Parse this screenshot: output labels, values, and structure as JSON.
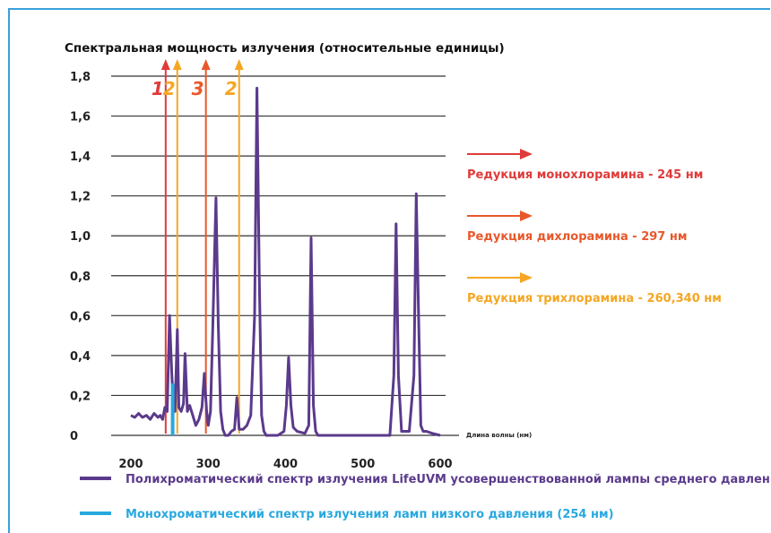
{
  "chart_data": {
    "type": "line",
    "title": "Спектральная мощность излучения (относительные единицы)",
    "xlabel": "Длина волны (нм)",
    "ylabel": "",
    "xlim": [
      160,
      600
    ],
    "ylim": [
      0,
      1.8
    ],
    "x_ticks": [
      "200",
      "300",
      "400",
      "500",
      "600"
    ],
    "y_ticks": [
      "0",
      "0,2",
      "0,4",
      "0,6",
      "0,8",
      "1,0",
      "1,2",
      "1,4",
      "1,6",
      "1,8"
    ],
    "grid": "horizontal",
    "series": [
      {
        "name": "Полихроматический спектр излучения LifeUVM усовершенствованной лампы среднего давления",
        "color": "#5b3a8c",
        "x": [
          200,
          205,
          210,
          215,
          220,
          225,
          230,
          235,
          238,
          241,
          244,
          247,
          250,
          253,
          255,
          257,
          260,
          262,
          265,
          268,
          270,
          273,
          276,
          280,
          284,
          288,
          292,
          295,
          298,
          300,
          303,
          306,
          310,
          313,
          316,
          319,
          322,
          326,
          330,
          334,
          337,
          340,
          345,
          350,
          355,
          360,
          363,
          366,
          369,
          372,
          375,
          380,
          390,
          398,
          401,
          404,
          407,
          410,
          415,
          425,
          430,
          433,
          436,
          439,
          442,
          460,
          500,
          535,
          540,
          543,
          546,
          550,
          560,
          566,
          569,
          572,
          575,
          578,
          582,
          590,
          600
        ],
        "values": [
          0.1,
          0.09,
          0.11,
          0.09,
          0.1,
          0.08,
          0.11,
          0.09,
          0.1,
          0.08,
          0.14,
          0.12,
          0.6,
          0.3,
          0.15,
          0.12,
          0.53,
          0.14,
          0.12,
          0.16,
          0.41,
          0.12,
          0.15,
          0.1,
          0.05,
          0.08,
          0.14,
          0.31,
          0.12,
          0.05,
          0.12,
          0.55,
          1.19,
          0.55,
          0.12,
          0.03,
          0.0,
          0.0,
          0.02,
          0.03,
          0.19,
          0.03,
          0.03,
          0.05,
          0.1,
          0.6,
          1.74,
          0.8,
          0.1,
          0.02,
          0.0,
          0.0,
          0.0,
          0.02,
          0.15,
          0.39,
          0.15,
          0.04,
          0.02,
          0.01,
          0.05,
          0.99,
          0.15,
          0.02,
          0.0,
          0.0,
          0.0,
          0.0,
          0.3,
          1.06,
          0.3,
          0.02,
          0.02,
          0.3,
          1.21,
          0.6,
          0.05,
          0.02,
          0.02,
          0.01,
          0.0
        ]
      },
      {
        "name": "Монохроматический спектр излучения ламп низкого давления (254 нм)",
        "color": "#29a8e0",
        "x": [
          254
        ],
        "values": [
          0.26
        ]
      }
    ],
    "markers": [
      {
        "label": "1",
        "wavelength": 245,
        "color": "#e03a3a"
      },
      {
        "label": "2",
        "wavelength": 260,
        "color": "#f5a623"
      },
      {
        "label": "3",
        "wavelength": 297,
        "color": "#e8582b"
      },
      {
        "label": "2",
        "wavelength": 340,
        "color": "#f5a623"
      }
    ],
    "annotations": [
      {
        "text": "Редукция монохлорамина - 245 нм",
        "color": "#e03a3a"
      },
      {
        "text": "Редукция дихлорамина - 297 нм",
        "color": "#e8582b"
      },
      {
        "text": "Редукция трихлорамина - 260,340 нм",
        "color": "#f5a623"
      }
    ],
    "legend_position": "bottom"
  },
  "colors": {
    "frame": "#3aa0dc",
    "grid": "#333333",
    "axis": "#333333"
  }
}
